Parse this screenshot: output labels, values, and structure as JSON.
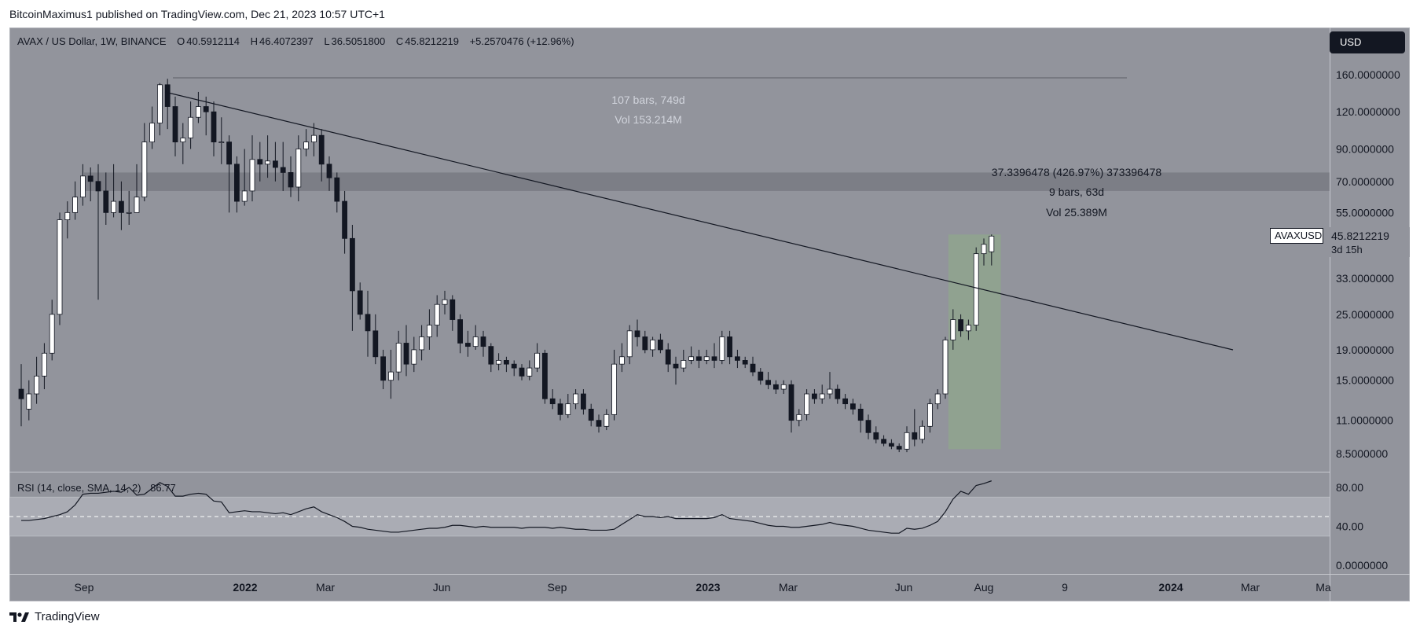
{
  "header": {
    "publisher_line": "BitcoinMaximus1 published on TradingView.com, Dec 21, 2023 10:57 UTC+1"
  },
  "footer": {
    "logo_text": "TradingView"
  },
  "toolbar": {
    "currency_label": "USD"
  },
  "legend": {
    "symbol": "AVAX / US Dollar, 1W, BINANCE",
    "open_key": "O",
    "open": "40.5912114",
    "high_key": "H",
    "high": "46.4072397",
    "low_key": "L",
    "low": "36.5051800",
    "close_key": "C",
    "close": "45.8212219",
    "change": "+5.2570476 (+12.96%)"
  },
  "last_price": {
    "symbol": "AVAXUSD",
    "price": "45.8212219",
    "countdown": "3d 15h"
  },
  "range_tool": {
    "bars": "107 bars, 749d",
    "volume": "Vol 153.214M"
  },
  "measure_tool": {
    "change": "37.3396478 (426.97%) 373396478",
    "bars": "9 bars, 63d",
    "volume": "Vol 25.389M"
  },
  "rsi": {
    "label": "RSI (14, close, SMA, 14, 2)",
    "value": "86.77"
  },
  "colors": {
    "background": "#92949c",
    "bull": "#ffffff",
    "bear": "#131722",
    "resistance_band": "#7c7e86",
    "measure_fill": "#8fa58e",
    "rsi_band": "#aaacb4"
  },
  "chart_data": [
    {
      "type": "candlestick",
      "title": "AVAX / US Dollar, 1W, BINANCE",
      "yscale": "log",
      "ylim": [
        7.5,
        190
      ],
      "y_ticks": [
        "160.0000000",
        "120.0000000",
        "90.0000000",
        "70.0000000",
        "55.0000000",
        "45.8212219",
        "33.0000000",
        "25.0000000",
        "19.0000000",
        "15.0000000",
        "11.0000000",
        "8.5000000"
      ],
      "x_ticks": [
        "Sep",
        "2022",
        "Mar",
        "Jun",
        "Sep",
        "2023",
        "Mar",
        "Jun",
        "Aug",
        "9",
        "2024",
        "Mar",
        "Ma"
      ],
      "grid": false,
      "candles": [
        [
          14,
          13,
          17,
          10.5
        ],
        [
          12,
          13.5,
          15,
          11
        ],
        [
          13.5,
          15.5,
          18,
          12.5
        ],
        [
          15.5,
          18.5,
          20,
          14
        ],
        [
          18.5,
          25,
          28,
          17.5
        ],
        [
          25,
          52,
          55,
          23
        ],
        [
          52,
          55,
          60,
          45
        ],
        [
          55,
          62,
          70,
          52
        ],
        [
          62,
          73,
          80,
          58
        ],
        [
          73,
          70,
          78,
          60
        ],
        [
          70,
          65,
          80,
          28
        ],
        [
          65,
          55,
          75,
          50
        ],
        [
          55,
          60,
          80,
          53
        ],
        [
          60,
          55,
          70,
          48
        ],
        [
          55,
          55,
          65,
          50
        ],
        [
          55,
          62,
          80,
          55
        ],
        [
          62,
          95,
          110,
          60
        ],
        [
          95,
          110,
          125,
          90
        ],
        [
          110,
          148,
          150,
          100
        ],
        [
          148,
          125,
          155,
          105
        ],
        [
          125,
          95,
          135,
          85
        ],
        [
          95,
          98,
          110,
          80
        ],
        [
          98,
          115,
          130,
          90
        ],
        [
          115,
          125,
          140,
          110
        ],
        [
          125,
          120,
          135,
          100
        ],
        [
          120,
          95,
          130,
          85
        ],
        [
          95,
          95,
          115,
          80
        ],
        [
          95,
          80,
          100,
          55
        ],
        [
          80,
          60,
          85,
          55
        ],
        [
          60,
          65,
          90,
          58
        ],
        [
          65,
          83,
          100,
          60
        ],
        [
          83,
          80,
          95,
          70
        ],
        [
          80,
          82,
          100,
          72
        ],
        [
          82,
          78,
          95,
          70
        ],
        [
          78,
          75,
          95,
          65
        ],
        [
          75,
          67,
          85,
          62
        ],
        [
          67,
          90,
          100,
          60
        ],
        [
          90,
          95,
          105,
          85
        ],
        [
          95,
          100,
          110,
          85
        ],
        [
          100,
          80,
          105,
          70
        ],
        [
          80,
          72,
          85,
          65
        ],
        [
          72,
          60,
          75,
          55
        ],
        [
          60,
          45,
          65,
          40
        ],
        [
          45,
          30,
          50,
          22
        ],
        [
          30,
          25,
          32,
          24
        ],
        [
          25,
          22,
          30,
          18
        ],
        [
          22,
          18,
          25,
          17
        ],
        [
          18,
          15,
          19,
          14
        ],
        [
          15,
          16,
          19,
          13
        ],
        [
          16,
          20,
          22,
          15
        ],
        [
          20,
          17,
          23,
          15.5
        ],
        [
          17,
          19,
          21,
          16
        ],
        [
          19,
          21,
          23,
          17.5
        ],
        [
          21,
          23,
          26,
          19
        ],
        [
          23,
          27,
          29,
          21
        ],
        [
          27,
          28,
          30,
          25
        ],
        [
          28,
          24,
          29,
          22
        ],
        [
          24,
          20,
          25,
          18.5
        ],
        [
          20,
          19.5,
          22,
          18
        ],
        [
          19.5,
          21,
          23,
          19
        ],
        [
          21,
          19.5,
          22,
          18
        ],
        [
          19.5,
          17,
          20,
          16
        ],
        [
          17,
          17.5,
          18.5,
          16.2
        ],
        [
          17.5,
          17,
          18,
          16
        ],
        [
          17,
          16.5,
          17.5,
          15.5
        ],
        [
          16.5,
          15.5,
          17,
          15
        ],
        [
          15.5,
          16.5,
          17.5,
          15
        ],
        [
          16.5,
          18.5,
          20,
          16
        ],
        [
          18.5,
          13,
          19,
          12.5
        ],
        [
          13,
          12.5,
          14,
          12
        ],
        [
          12.5,
          11.5,
          13,
          11
        ],
        [
          11.5,
          12.5,
          13.5,
          11.2
        ],
        [
          12.5,
          13.5,
          14,
          12
        ],
        [
          13.5,
          12,
          14,
          11.5
        ],
        [
          12,
          11,
          12.5,
          10.5
        ],
        [
          11,
          10.5,
          11.5,
          10
        ],
        [
          10.5,
          11.5,
          12,
          10.2
        ],
        [
          11.5,
          17,
          19,
          11
        ],
        [
          17,
          18,
          20,
          16
        ],
        [
          18,
          22,
          23,
          17
        ],
        [
          22,
          21,
          24,
          19.5
        ],
        [
          21,
          19,
          22,
          18.5
        ],
        [
          19,
          20.5,
          21,
          18
        ],
        [
          20.5,
          19,
          21.5,
          18.5
        ],
        [
          19,
          17,
          20,
          16
        ],
        [
          17,
          16.5,
          18,
          14.5
        ],
        [
          16.5,
          17.5,
          19,
          16
        ],
        [
          17.5,
          18,
          19.5,
          17
        ],
        [
          18,
          17.5,
          19,
          16.5
        ],
        [
          17.5,
          18,
          19,
          17
        ],
        [
          18,
          17.5,
          20,
          16.5
        ],
        [
          17.5,
          21,
          22,
          17
        ],
        [
          21,
          18,
          22,
          17
        ],
        [
          18,
          17.5,
          19,
          16.5
        ],
        [
          17.5,
          17,
          18,
          16.5
        ],
        [
          17,
          16,
          18,
          15.5
        ],
        [
          16,
          15,
          16.5,
          14.5
        ],
        [
          15,
          14.5,
          16,
          14
        ],
        [
          14.5,
          14,
          15,
          13.5
        ],
        [
          14,
          14.5,
          15,
          13.5
        ],
        [
          14.5,
          11,
          15,
          10
        ],
        [
          11,
          11.5,
          12,
          10.5
        ],
        [
          11.5,
          13.5,
          14,
          11
        ],
        [
          13.5,
          13,
          14,
          12.5
        ],
        [
          13,
          13.5,
          14.5,
          12.5
        ],
        [
          13.5,
          14,
          16,
          13
        ],
        [
          14,
          13,
          14.5,
          12.5
        ],
        [
          13,
          12.5,
          13.5,
          12
        ],
        [
          12.5,
          12,
          13,
          11.5
        ],
        [
          12,
          11,
          12.5,
          10
        ],
        [
          11,
          10,
          11.5,
          9.5
        ],
        [
          10,
          9.5,
          10.5,
          9.2
        ],
        [
          9.5,
          9.2,
          9.8,
          9
        ],
        [
          9.2,
          9,
          9.5,
          8.8
        ],
        [
          9,
          8.8,
          9.2,
          8.6
        ],
        [
          8.8,
          10,
          10.5,
          8.6
        ],
        [
          10,
          9.5,
          12,
          9
        ],
        [
          9.5,
          10.5,
          11,
          9.2
        ],
        [
          10.5,
          12.5,
          13,
          10
        ],
        [
          12.5,
          13.5,
          14,
          12
        ],
        [
          13.5,
          20.5,
          21,
          13
        ],
        [
          20.5,
          24,
          26,
          19
        ],
        [
          24,
          22,
          25,
          21
        ],
        [
          22,
          23,
          24,
          20.5
        ],
        [
          23,
          40,
          42,
          22
        ],
        [
          40,
          43,
          45,
          36.5
        ],
        [
          40.59,
          45.82,
          46.41,
          36.51
        ]
      ]
    },
    {
      "type": "line",
      "title": "RSI (14, close, SMA, 14, 2)",
      "ylim": [
        0,
        100
      ],
      "y_ticks": [
        "80.00",
        "40.00",
        "0.0000000"
      ],
      "bands": {
        "upper": 70,
        "middle": 50,
        "lower": 30
      },
      "values": [
        46,
        46,
        47,
        48,
        50,
        52,
        55,
        62,
        73,
        74,
        74,
        75,
        76,
        75,
        80,
        72,
        73,
        79,
        85,
        81,
        71,
        71,
        73,
        74,
        73,
        66,
        65,
        54,
        55,
        56,
        55,
        55,
        54,
        53,
        54,
        52,
        55,
        58,
        60,
        55,
        52,
        49,
        45,
        40,
        39,
        37,
        36,
        35,
        34,
        34,
        35,
        36,
        37,
        38,
        38,
        39,
        41,
        41,
        40,
        39,
        40,
        39,
        39,
        39,
        39,
        38,
        39,
        39,
        39,
        38,
        39,
        38,
        37,
        37,
        36,
        36,
        36,
        37,
        42,
        47,
        52,
        50,
        50,
        49,
        50,
        48,
        48,
        48,
        48,
        48,
        49,
        52,
        48,
        47,
        46,
        45,
        43,
        41,
        40,
        40,
        39,
        39,
        40,
        41,
        42,
        44,
        42,
        41,
        40,
        38,
        36,
        35,
        34,
        33,
        33,
        38,
        37,
        38,
        41,
        45,
        55,
        68,
        76,
        73,
        82,
        84,
        86.77
      ]
    }
  ]
}
